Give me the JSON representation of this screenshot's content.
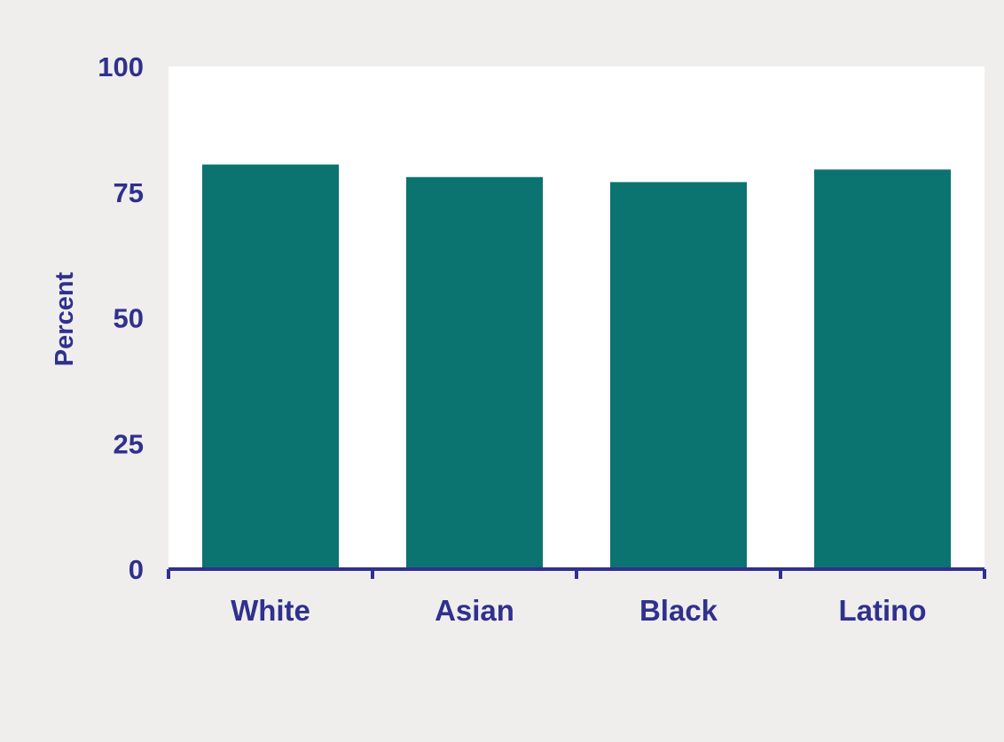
{
  "colors": {
    "panel_background": "#efeeec",
    "plot_background": "#ffffff",
    "bar": "#0b7370",
    "axis": "#30308e",
    "text": "#30308e"
  },
  "chart_data": {
    "type": "bar",
    "categories": [
      "White",
      "Asian",
      "Black",
      "Latino"
    ],
    "values": [
      80.5,
      78,
      77,
      79.5
    ],
    "title": "",
    "xlabel": "",
    "ylabel": "Percent",
    "ylim": [
      0,
      100
    ],
    "yticks": [
      "0",
      "25",
      "50",
      "75",
      "100"
    ],
    "grid": false,
    "legend": "none"
  }
}
